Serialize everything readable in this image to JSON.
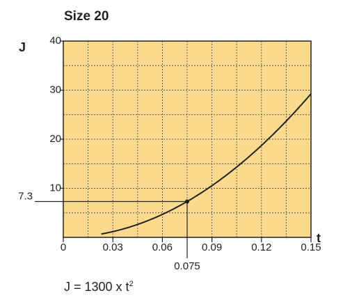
{
  "chart_data": {
    "type": "line",
    "title": "Size 20",
    "xlabel": "t",
    "ylabel": "J",
    "xlim": [
      0,
      0.15
    ],
    "ylim": [
      0,
      40
    ],
    "x_ticks": [
      {
        "value": 0,
        "label": "0"
      },
      {
        "value": 0.03,
        "label": "0.03"
      },
      {
        "value": 0.06,
        "label": "0.06"
      },
      {
        "value": 0.09,
        "label": "0.09"
      },
      {
        "value": 0.12,
        "label": "0.12"
      },
      {
        "value": 0.15,
        "label": "0.15"
      }
    ],
    "y_ticks": [
      {
        "value": 10,
        "label": "10"
      },
      {
        "value": 20,
        "label": "20"
      },
      {
        "value": 30,
        "label": "30"
      },
      {
        "value": 40,
        "label": "40"
      }
    ],
    "grid": true,
    "grid_minor_x": 0.015,
    "grid_minor_y": 5,
    "series": [
      {
        "formula": "J = 1300 x t",
        "formula_superscript": "2",
        "coefficient": 1300,
        "exponent": 2,
        "x": [
          0.023,
          0.03,
          0.045,
          0.06,
          0.075,
          0.09,
          0.105,
          0.12,
          0.135,
          0.15
        ],
        "values": [
          0.69,
          1.17,
          2.63,
          4.68,
          7.31,
          10.53,
          14.33,
          18.72,
          23.69,
          29.25
        ]
      }
    ],
    "marker": {
      "x": 0.075,
      "y": 7.3,
      "x_label": "0.075",
      "y_label": "7.3"
    },
    "colors": {
      "plot_background": "#FBDA8E",
      "curve": "#222222",
      "grid": "#555555",
      "axis": "#222222"
    }
  }
}
